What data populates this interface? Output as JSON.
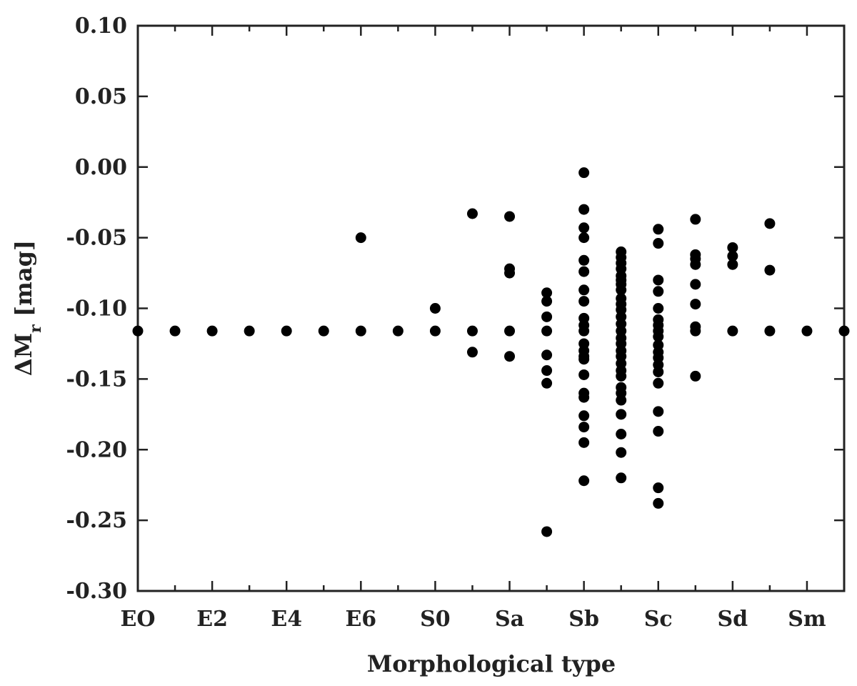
{
  "chart_data": {
    "type": "scatter",
    "xlabel": "Morphological type",
    "ylabel": "ΔM_r [mag]",
    "ylim": [
      -0.3,
      0.1
    ],
    "xlim": [
      0,
      19
    ],
    "x_ticks": [
      {
        "x": 0,
        "label": "EO"
      },
      {
        "x": 2,
        "label": "E2"
      },
      {
        "x": 4,
        "label": "E4"
      },
      {
        "x": 6,
        "label": "E6"
      },
      {
        "x": 8,
        "label": "S0"
      },
      {
        "x": 10,
        "label": "Sa"
      },
      {
        "x": 12,
        "label": "Sb"
      },
      {
        "x": 14,
        "label": "Sc"
      },
      {
        "x": 16,
        "label": "Sd"
      },
      {
        "x": 18,
        "label": "Sm"
      }
    ],
    "y_ticks": [
      {
        "y": 0.1,
        "label": "0.10"
      },
      {
        "y": 0.05,
        "label": "0.05"
      },
      {
        "y": 0.0,
        "label": "0.00"
      },
      {
        "y": -0.05,
        "label": "-0.05"
      },
      {
        "y": -0.1,
        "label": "-0.10"
      },
      {
        "y": -0.15,
        "label": "-0.15"
      },
      {
        "y": -0.2,
        "label": "-0.20"
      },
      {
        "y": -0.25,
        "label": "-0.25"
      },
      {
        "y": -0.3,
        "label": "-0.30"
      }
    ],
    "grid": false,
    "legend": "none",
    "marker_color": "#000000",
    "points": [
      {
        "x": 0,
        "y": -0.116
      },
      {
        "x": 1,
        "y": -0.116
      },
      {
        "x": 2,
        "y": -0.116
      },
      {
        "x": 3,
        "y": -0.116
      },
      {
        "x": 4,
        "y": -0.116
      },
      {
        "x": 5,
        "y": -0.116
      },
      {
        "x": 6,
        "y": -0.116
      },
      {
        "x": 6,
        "y": -0.05
      },
      {
        "x": 7,
        "y": -0.116
      },
      {
        "x": 8,
        "y": -0.116
      },
      {
        "x": 8,
        "y": -0.1
      },
      {
        "x": 9,
        "y": -0.033
      },
      {
        "x": 9,
        "y": -0.116
      },
      {
        "x": 9,
        "y": -0.131
      },
      {
        "x": 10,
        "y": -0.035
      },
      {
        "x": 10,
        "y": -0.072
      },
      {
        "x": 10,
        "y": -0.075
      },
      {
        "x": 10,
        "y": -0.116
      },
      {
        "x": 10,
        "y": -0.134
      },
      {
        "x": 11,
        "y": -0.089
      },
      {
        "x": 11,
        "y": -0.095
      },
      {
        "x": 11,
        "y": -0.106
      },
      {
        "x": 11,
        "y": -0.116
      },
      {
        "x": 11,
        "y": -0.133
      },
      {
        "x": 11,
        "y": -0.144
      },
      {
        "x": 11,
        "y": -0.153
      },
      {
        "x": 11,
        "y": -0.258
      },
      {
        "x": 12,
        "y": -0.004
      },
      {
        "x": 12,
        "y": -0.03
      },
      {
        "x": 12,
        "y": -0.043
      },
      {
        "x": 12,
        "y": -0.05
      },
      {
        "x": 12,
        "y": -0.066
      },
      {
        "x": 12,
        "y": -0.074
      },
      {
        "x": 12,
        "y": -0.087
      },
      {
        "x": 12,
        "y": -0.095
      },
      {
        "x": 12,
        "y": -0.107
      },
      {
        "x": 12,
        "y": -0.112
      },
      {
        "x": 12,
        "y": -0.116
      },
      {
        "x": 12,
        "y": -0.125
      },
      {
        "x": 12,
        "y": -0.13
      },
      {
        "x": 12,
        "y": -0.134
      },
      {
        "x": 12,
        "y": -0.136
      },
      {
        "x": 12,
        "y": -0.147
      },
      {
        "x": 12,
        "y": -0.16
      },
      {
        "x": 12,
        "y": -0.163
      },
      {
        "x": 12,
        "y": -0.176
      },
      {
        "x": 12,
        "y": -0.184
      },
      {
        "x": 12,
        "y": -0.195
      },
      {
        "x": 12,
        "y": -0.222
      },
      {
        "x": 13,
        "y": -0.06
      },
      {
        "x": 13,
        "y": -0.064
      },
      {
        "x": 13,
        "y": -0.068
      },
      {
        "x": 13,
        "y": -0.072
      },
      {
        "x": 13,
        "y": -0.077
      },
      {
        "x": 13,
        "y": -0.08
      },
      {
        "x": 13,
        "y": -0.083
      },
      {
        "x": 13,
        "y": -0.087
      },
      {
        "x": 13,
        "y": -0.093
      },
      {
        "x": 13,
        "y": -0.097
      },
      {
        "x": 13,
        "y": -0.101
      },
      {
        "x": 13,
        "y": -0.106
      },
      {
        "x": 13,
        "y": -0.111
      },
      {
        "x": 13,
        "y": -0.116
      },
      {
        "x": 13,
        "y": -0.121
      },
      {
        "x": 13,
        "y": -0.125
      },
      {
        "x": 13,
        "y": -0.13
      },
      {
        "x": 13,
        "y": -0.134
      },
      {
        "x": 13,
        "y": -0.139
      },
      {
        "x": 13,
        "y": -0.144
      },
      {
        "x": 13,
        "y": -0.148
      },
      {
        "x": 13,
        "y": -0.156
      },
      {
        "x": 13,
        "y": -0.16
      },
      {
        "x": 13,
        "y": -0.165
      },
      {
        "x": 13,
        "y": -0.175
      },
      {
        "x": 13,
        "y": -0.189
      },
      {
        "x": 13,
        "y": -0.202
      },
      {
        "x": 13,
        "y": -0.22
      },
      {
        "x": 14,
        "y": -0.044
      },
      {
        "x": 14,
        "y": -0.054
      },
      {
        "x": 14,
        "y": -0.08
      },
      {
        "x": 14,
        "y": -0.088
      },
      {
        "x": 14,
        "y": -0.1
      },
      {
        "x": 14,
        "y": -0.108
      },
      {
        "x": 14,
        "y": -0.112
      },
      {
        "x": 14,
        "y": -0.116
      },
      {
        "x": 14,
        "y": -0.12
      },
      {
        "x": 14,
        "y": -0.126
      },
      {
        "x": 14,
        "y": -0.131
      },
      {
        "x": 14,
        "y": -0.135
      },
      {
        "x": 14,
        "y": -0.14
      },
      {
        "x": 14,
        "y": -0.145
      },
      {
        "x": 14,
        "y": -0.153
      },
      {
        "x": 14,
        "y": -0.173
      },
      {
        "x": 14,
        "y": -0.187
      },
      {
        "x": 14,
        "y": -0.227
      },
      {
        "x": 14,
        "y": -0.238
      },
      {
        "x": 15,
        "y": -0.037
      },
      {
        "x": 15,
        "y": -0.062
      },
      {
        "x": 15,
        "y": -0.065
      },
      {
        "x": 15,
        "y": -0.069
      },
      {
        "x": 15,
        "y": -0.083
      },
      {
        "x": 15,
        "y": -0.097
      },
      {
        "x": 15,
        "y": -0.113
      },
      {
        "x": 15,
        "y": -0.116
      },
      {
        "x": 15,
        "y": -0.148
      },
      {
        "x": 16,
        "y": -0.057
      },
      {
        "x": 16,
        "y": -0.063
      },
      {
        "x": 16,
        "y": -0.069
      },
      {
        "x": 16,
        "y": -0.116
      },
      {
        "x": 17,
        "y": -0.04
      },
      {
        "x": 17,
        "y": -0.073
      },
      {
        "x": 17,
        "y": -0.116
      },
      {
        "x": 18,
        "y": -0.116
      },
      {
        "x": 19,
        "y": -0.116
      }
    ]
  }
}
